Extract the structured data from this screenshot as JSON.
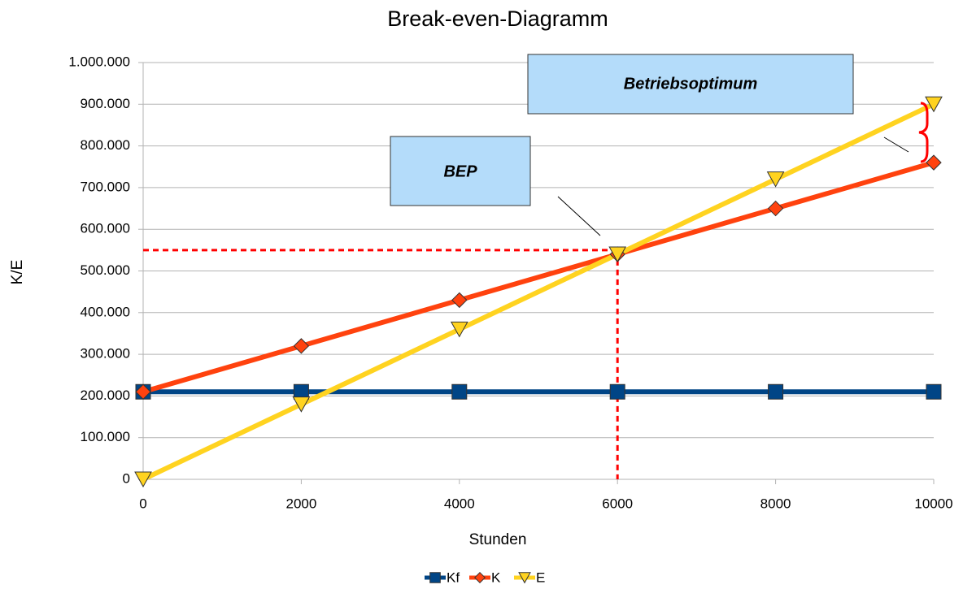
{
  "chart_data": {
    "type": "line",
    "title": "Break-even-Diagramm",
    "x_label": "Stunden",
    "y_label": "K/E",
    "x": [
      0,
      2000,
      4000,
      6000,
      8000,
      10000
    ],
    "series": [
      {
        "name": "Kf",
        "color": "#004586",
        "marker": "square",
        "values": [
          210000,
          210000,
          210000,
          210000,
          210000,
          210000
        ]
      },
      {
        "name": "K",
        "color": "#ff420e",
        "marker": "diamond",
        "values": [
          210000,
          320000,
          430000,
          540000,
          650000,
          760000
        ]
      },
      {
        "name": "E",
        "color": "#ffd320",
        "marker": "triangle-down",
        "values": [
          0,
          180000,
          360000,
          540000,
          720000,
          900000
        ]
      }
    ],
    "xlim": [
      0,
      10000
    ],
    "xticks": [
      0,
      2000,
      4000,
      6000,
      8000,
      10000
    ],
    "ylim": [
      0,
      1000000
    ],
    "yticks": [
      0,
      {
        "value": 100000,
        "label": "100.000"
      },
      {
        "value": 200000,
        "label": "200.000"
      },
      {
        "value": 300000,
        "label": "300.000"
      },
      {
        "value": 400000,
        "label": "400.000"
      },
      {
        "value": 500000,
        "label": "500.000"
      },
      {
        "value": 600000,
        "label": "600.000"
      },
      {
        "value": 700000,
        "label": "700.000"
      },
      {
        "value": 800000,
        "label": "800.000"
      },
      {
        "value": 900000,
        "label": "900.000"
      },
      {
        "value": 1000000,
        "label": "1.000.000"
      }
    ],
    "grid": true,
    "legend": "bottom",
    "reference_lines": {
      "x": 6000,
      "y": 550000,
      "color": "#ff0000"
    },
    "annotations": [
      "BEP",
      "Betriebsoptimum"
    ]
  }
}
